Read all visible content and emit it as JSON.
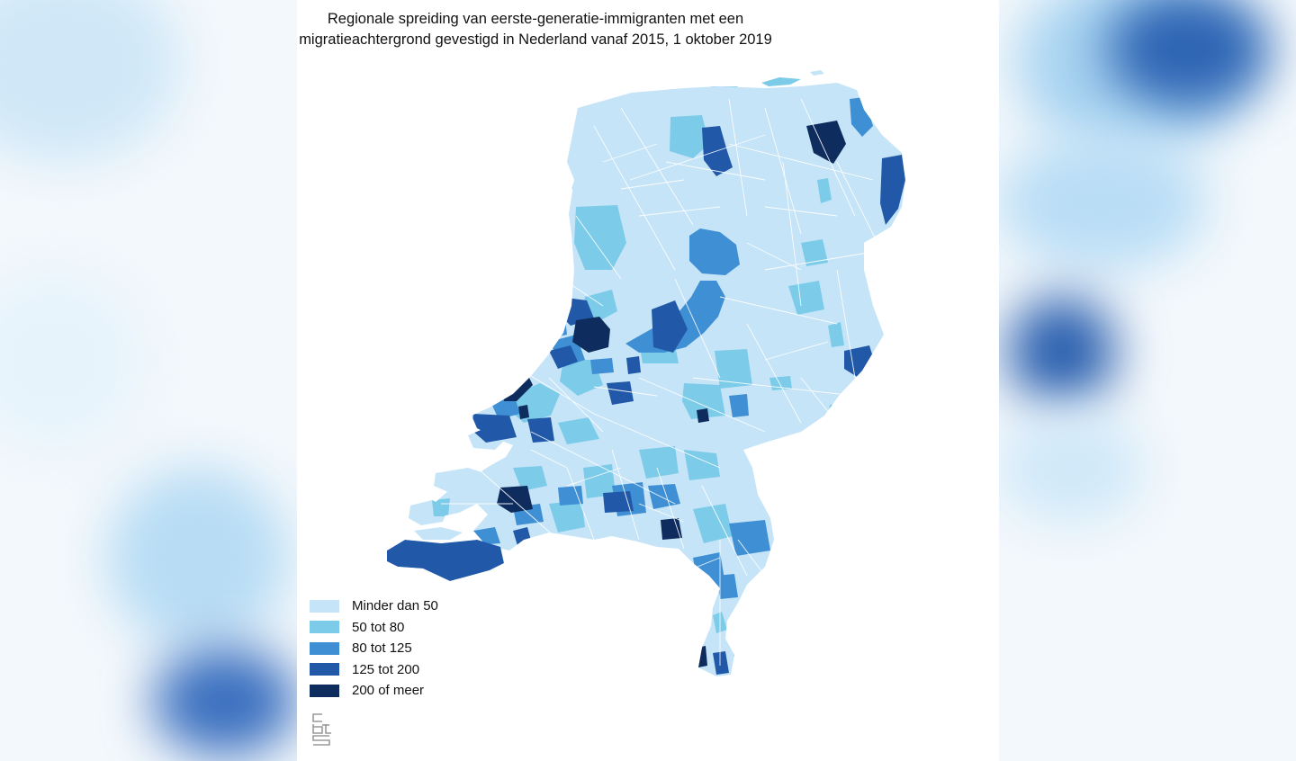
{
  "map": {
    "title_line1": "Regionale spreiding van eerste-generatie-immigranten met een",
    "title_line2": "migratieachtergrond gevestigd in Nederland vanaf 2015, 1 oktober 2019",
    "region": "Nederland",
    "legend": [
      {
        "label": "Minder dan 50",
        "color": "#c6e4f7",
        "class": 0
      },
      {
        "label": "50 tot 80",
        "color": "#7ccbe9",
        "class": 1
      },
      {
        "label": "80 tot 125",
        "color": "#3f8fd4",
        "class": 2
      },
      {
        "label": "125 tot 200",
        "color": "#2159a8",
        "class": 3
      },
      {
        "label": "200 of meer",
        "color": "#0f2c5e",
        "class": 4
      }
    ],
    "logo": "cbs"
  },
  "colors": {
    "base": "#c6e4f7",
    "borders": "#ffffff",
    "water": "#ffffff"
  }
}
